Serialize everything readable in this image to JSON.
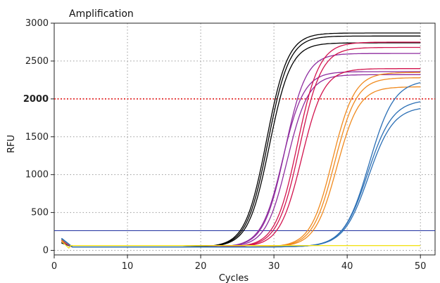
{
  "chart_data": {
    "type": "line",
    "title": "Amplification",
    "xlabel": "Cycles",
    "ylabel": "RFU",
    "xlim": [
      0,
      52
    ],
    "ylim": [
      -60,
      3000
    ],
    "x_ticks": [
      "0",
      "10",
      "20",
      "30",
      "40",
      "50"
    ],
    "y_ticks": [
      "0",
      "500",
      "1000",
      "1500",
      "2000",
      "2500",
      "3000"
    ],
    "highlighted_tick": "2000",
    "grid": true,
    "x_range": [
      1,
      50
    ],
    "colors": {
      "black": "#000000",
      "purple": "#8e2c9f",
      "crimson": "#d2144e",
      "orange": "#f08a1e",
      "blue": "#2b6fb5",
      "yellow": "#f2e21a",
      "threshold_blue": "#1f2fa0",
      "threshold_red": "#e01818",
      "grid": "#9a9a9a"
    },
    "reference_lines": [
      {
        "y": 2000,
        "color": "#e01818",
        "style": "dotted"
      },
      {
        "y": 260,
        "color": "#1f2fa0",
        "style": "solid"
      }
    ],
    "series": [
      {
        "color": "#000000",
        "plateau": 2870,
        "midpoint": 29.0,
        "slope": 1.45
      },
      {
        "color": "#000000",
        "plateau": 2830,
        "midpoint": 29.2,
        "slope": 1.45
      },
      {
        "color": "#000000",
        "plateau": 2740,
        "midpoint": 29.4,
        "slope": 1.45
      },
      {
        "color": "#8e2c9f",
        "plateau": 2600,
        "midpoint": 31.5,
        "slope": 1.45
      },
      {
        "color": "#8e2c9f",
        "plateau": 2360,
        "midpoint": 31.2,
        "slope": 1.45
      },
      {
        "color": "#8e2c9f",
        "plateau": 2320,
        "midpoint": 31.8,
        "slope": 1.45
      },
      {
        "color": "#d2144e",
        "plateau": 2750,
        "midpoint": 33.2,
        "slope": 1.5
      },
      {
        "color": "#d2144e",
        "plateau": 2680,
        "midpoint": 33.5,
        "slope": 1.5
      },
      {
        "color": "#d2144e",
        "plateau": 2400,
        "midpoint": 33.8,
        "slope": 1.5
      },
      {
        "color": "#f08a1e",
        "plateau": 2350,
        "midpoint": 38.0,
        "slope": 1.5
      },
      {
        "color": "#f08a1e",
        "plateau": 2280,
        "midpoint": 38.3,
        "slope": 1.5
      },
      {
        "color": "#f08a1e",
        "plateau": 2160,
        "midpoint": 38.6,
        "slope": 1.5
      },
      {
        "color": "#2b6fb5",
        "plateau": 2250,
        "midpoint": 43.0,
        "slope": 1.7
      },
      {
        "color": "#2b6fb5",
        "plateau": 1990,
        "midpoint": 42.8,
        "slope": 1.7
      },
      {
        "color": "#2b6fb5",
        "plateau": 1900,
        "midpoint": 42.9,
        "slope": 1.7
      },
      {
        "color": "#f2e21a",
        "plateau": 70,
        "midpoint": 0,
        "slope": 0
      }
    ]
  }
}
